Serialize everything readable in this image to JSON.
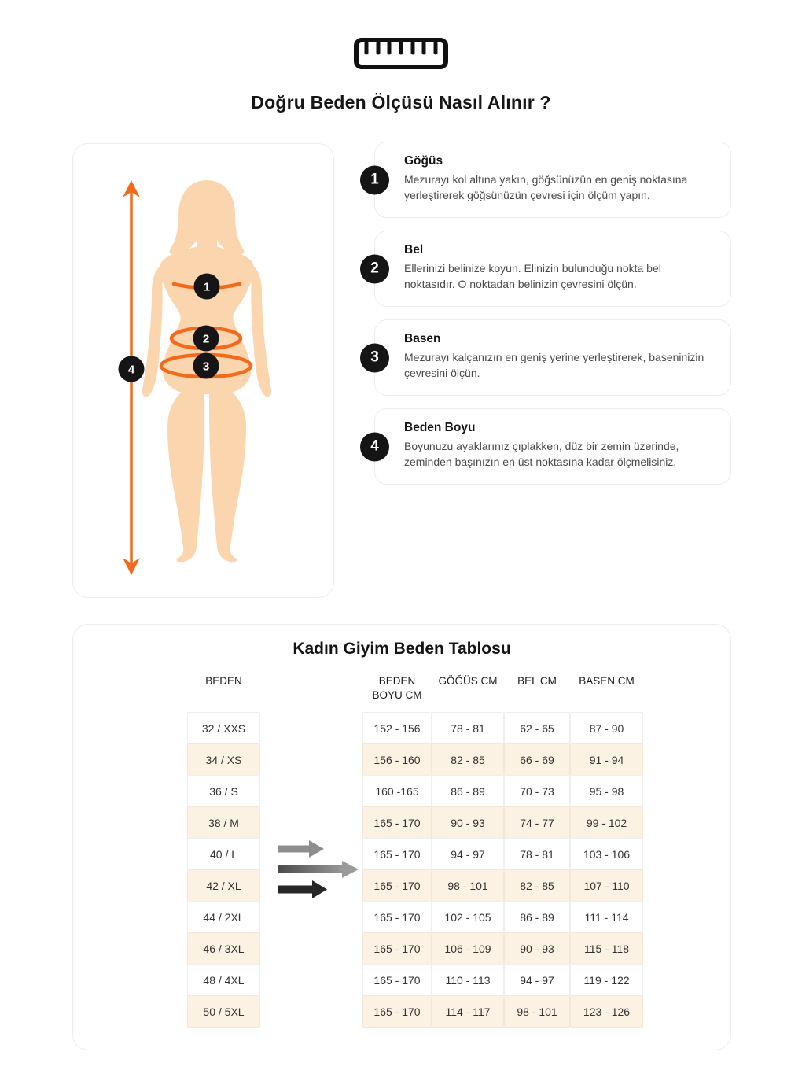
{
  "page": {
    "title": "Doğru Beden Ölçüsü Nasıl Alınır ?"
  },
  "figure": {
    "markers": [
      "1",
      "2",
      "3",
      "4"
    ]
  },
  "instructions": [
    {
      "num": "1",
      "title": "Göğüs",
      "desc": "Mezurayı kol altına yakın, göğsünüzün en geniş noktasına yerleştirerek göğsünüzün çevresi için ölçüm yapın."
    },
    {
      "num": "2",
      "title": "Bel",
      "desc": "Ellerinizi belinize koyun. Elinizin bulunduğu nokta bel noktasıdır. O noktadan belinizin çevresini ölçün."
    },
    {
      "num": "3",
      "title": "Basen",
      "desc": "Mezurayı kalçanızın en geniş yerine yerleştirerek, baseninizin çevresini ölçün."
    },
    {
      "num": "4",
      "title": "Beden Boyu",
      "desc": "Boyunuzu ayaklarınız çıplakken, düz bir zemin üzerinde, zeminden başınızın en üst noktasına kadar ölçmelisiniz."
    }
  ],
  "size_table": {
    "title": "Kadın Giyim Beden Tablosu",
    "columns": [
      "BEDEN",
      "BEDEN BOYU CM",
      "GÖĞÜS CM",
      "BEL CM",
      "BASEN CM"
    ],
    "rows": [
      {
        "beden": "32 / XXS",
        "values": [
          "152 - 156",
          "78 - 81",
          "62 - 65",
          "87 - 90"
        ]
      },
      {
        "beden": "34 / XS",
        "values": [
          "156 - 160",
          "82 - 85",
          "66 - 69",
          "91 - 94"
        ]
      },
      {
        "beden": "36 / S",
        "values": [
          "160 -165",
          "86 - 89",
          "70 - 73",
          "95 - 98"
        ]
      },
      {
        "beden": "38 / M",
        "values": [
          "165 - 170",
          "90 - 93",
          "74 - 77",
          "99 - 102"
        ]
      },
      {
        "beden": "40 / L",
        "values": [
          "165 - 170",
          "94 - 97",
          "78 - 81",
          "103 - 106"
        ]
      },
      {
        "beden": "42 / XL",
        "values": [
          "165 - 170",
          "98 - 101",
          "82 - 85",
          "107 - 110"
        ]
      },
      {
        "beden": "44 / 2XL",
        "values": [
          "165 - 170",
          "102 - 105",
          "86 - 89",
          "111 - 114"
        ]
      },
      {
        "beden": "46 / 3XL",
        "values": [
          "165 - 170",
          "106 - 109",
          "90 - 93",
          "115 - 118"
        ]
      },
      {
        "beden": "48 / 4XL",
        "values": [
          "165 - 170",
          "110 - 113",
          "94 - 97",
          "119 - 122"
        ]
      },
      {
        "beden": "50 / 5XL",
        "values": [
          "165 - 170",
          "114 - 117",
          "98 - 101",
          "123 - 126"
        ]
      }
    ]
  },
  "colors": {
    "accent_orange": "#f26b1d",
    "skin": "#fbd5ae",
    "row_highlight": "#fcf2e4",
    "badge_black": "#151515"
  }
}
